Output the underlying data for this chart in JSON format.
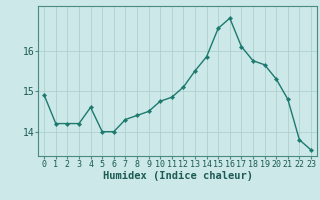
{
  "x": [
    0,
    1,
    2,
    3,
    4,
    5,
    6,
    7,
    8,
    9,
    10,
    11,
    12,
    13,
    14,
    15,
    16,
    17,
    18,
    19,
    20,
    21,
    22,
    23
  ],
  "y": [
    14.9,
    14.2,
    14.2,
    14.2,
    14.6,
    14.0,
    14.0,
    14.3,
    14.4,
    14.5,
    14.75,
    14.85,
    15.1,
    15.5,
    15.85,
    16.55,
    16.8,
    16.1,
    15.75,
    15.65,
    15.3,
    14.8,
    13.8,
    13.55
  ],
  "line_color": "#1c7a6e",
  "marker": "D",
  "marker_size": 2.2,
  "bg_color": "#cce8e8",
  "grid_color": "#b0d0d0",
  "xlabel": "Humidex (Indice chaleur)",
  "ylim": [
    13.4,
    17.1
  ],
  "xlim": [
    -0.5,
    23.5
  ],
  "yticks": [
    14,
    15,
    16
  ],
  "xtick_labels": [
    "0",
    "1",
    "2",
    "3",
    "4",
    "5",
    "6",
    "7",
    "8",
    "9",
    "10",
    "11",
    "12",
    "13",
    "14",
    "15",
    "16",
    "17",
    "18",
    "19",
    "20",
    "21",
    "22",
    "23"
  ],
  "line_width": 1.0,
  "xlabel_fontsize": 7.5,
  "tick_fontsize": 6.0,
  "ytick_fontsize": 7.0,
  "spine_color": "#4a8a80"
}
